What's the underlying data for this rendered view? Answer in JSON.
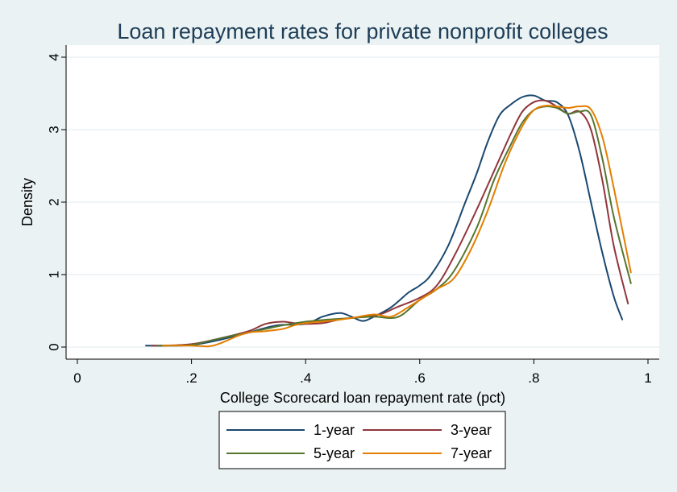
{
  "chart_data": {
    "type": "line",
    "title": "Loan repayment rates for private nonprofit colleges",
    "xlabel": "College Scorecard loan repayment rate (pct)",
    "ylabel": "Density",
    "xlim": [
      0,
      1
    ],
    "ylim": [
      0,
      4
    ],
    "x_ticks": [
      0,
      0.2,
      0.4,
      0.6,
      0.8,
      1
    ],
    "x_tick_labels": [
      "0",
      ".2",
      ".4",
      ".6",
      ".8",
      "1"
    ],
    "y_ticks": [
      0,
      1,
      2,
      3,
      4
    ],
    "y_tick_labels": [
      "0",
      "1",
      "2",
      "3",
      "4"
    ],
    "grid": "horizontal",
    "legend_position": "bottom",
    "colors": {
      "background": "#eaf2f3",
      "plot_background": "#ffffff",
      "grid": "#eaf2f3",
      "title": "#1e3d57"
    },
    "series": [
      {
        "name": "1-year",
        "color": "#1a476f",
        "points": [
          [
            0.12,
            0.02
          ],
          [
            0.15,
            0.02
          ],
          [
            0.2,
            0.03
          ],
          [
            0.25,
            0.1
          ],
          [
            0.3,
            0.2
          ],
          [
            0.35,
            0.3
          ],
          [
            0.4,
            0.32
          ],
          [
            0.43,
            0.42
          ],
          [
            0.46,
            0.47
          ],
          [
            0.48,
            0.42
          ],
          [
            0.5,
            0.36
          ],
          [
            0.52,
            0.42
          ],
          [
            0.55,
            0.55
          ],
          [
            0.58,
            0.75
          ],
          [
            0.6,
            0.85
          ],
          [
            0.62,
            1.0
          ],
          [
            0.65,
            1.4
          ],
          [
            0.68,
            2.0
          ],
          [
            0.7,
            2.4
          ],
          [
            0.72,
            2.85
          ],
          [
            0.74,
            3.2
          ],
          [
            0.76,
            3.35
          ],
          [
            0.78,
            3.45
          ],
          [
            0.8,
            3.47
          ],
          [
            0.82,
            3.4
          ],
          [
            0.84,
            3.38
          ],
          [
            0.86,
            3.2
          ],
          [
            0.88,
            2.7
          ],
          [
            0.9,
            2.0
          ],
          [
            0.92,
            1.3
          ],
          [
            0.94,
            0.7
          ],
          [
            0.955,
            0.38
          ]
        ]
      },
      {
        "name": "3-year",
        "color": "#90353b",
        "points": [
          [
            0.13,
            0.02
          ],
          [
            0.15,
            0.02
          ],
          [
            0.2,
            0.04
          ],
          [
            0.25,
            0.12
          ],
          [
            0.3,
            0.22
          ],
          [
            0.33,
            0.32
          ],
          [
            0.36,
            0.35
          ],
          [
            0.38,
            0.33
          ],
          [
            0.4,
            0.32
          ],
          [
            0.43,
            0.33
          ],
          [
            0.46,
            0.38
          ],
          [
            0.5,
            0.42
          ],
          [
            0.53,
            0.45
          ],
          [
            0.56,
            0.55
          ],
          [
            0.6,
            0.68
          ],
          [
            0.63,
            0.85
          ],
          [
            0.66,
            1.25
          ],
          [
            0.7,
            1.9
          ],
          [
            0.74,
            2.6
          ],
          [
            0.76,
            2.95
          ],
          [
            0.78,
            3.25
          ],
          [
            0.8,
            3.38
          ],
          [
            0.82,
            3.4
          ],
          [
            0.84,
            3.32
          ],
          [
            0.86,
            3.22
          ],
          [
            0.88,
            3.25
          ],
          [
            0.9,
            3.0
          ],
          [
            0.92,
            2.3
          ],
          [
            0.94,
            1.4
          ],
          [
            0.965,
            0.6
          ]
        ]
      },
      {
        "name": "5-year",
        "color": "#55752f",
        "points": [
          [
            0.14,
            0.02
          ],
          [
            0.17,
            0.02
          ],
          [
            0.2,
            0.03
          ],
          [
            0.25,
            0.12
          ],
          [
            0.3,
            0.2
          ],
          [
            0.33,
            0.25
          ],
          [
            0.36,
            0.3
          ],
          [
            0.4,
            0.35
          ],
          [
            0.44,
            0.38
          ],
          [
            0.48,
            0.4
          ],
          [
            0.52,
            0.42
          ],
          [
            0.55,
            0.4
          ],
          [
            0.57,
            0.45
          ],
          [
            0.6,
            0.65
          ],
          [
            0.63,
            0.8
          ],
          [
            0.66,
            1.05
          ],
          [
            0.7,
            1.65
          ],
          [
            0.73,
            2.3
          ],
          [
            0.76,
            2.8
          ],
          [
            0.78,
            3.1
          ],
          [
            0.8,
            3.27
          ],
          [
            0.82,
            3.32
          ],
          [
            0.84,
            3.3
          ],
          [
            0.86,
            3.22
          ],
          [
            0.88,
            3.25
          ],
          [
            0.9,
            3.2
          ],
          [
            0.92,
            2.6
          ],
          [
            0.94,
            1.8
          ],
          [
            0.97,
            0.88
          ]
        ]
      },
      {
        "name": "7-year",
        "color": "#e37e00",
        "points": [
          [
            0.15,
            0.02
          ],
          [
            0.2,
            0.02
          ],
          [
            0.23,
            0.01
          ],
          [
            0.25,
            0.05
          ],
          [
            0.28,
            0.15
          ],
          [
            0.3,
            0.2
          ],
          [
            0.33,
            0.22
          ],
          [
            0.36,
            0.25
          ],
          [
            0.38,
            0.3
          ],
          [
            0.4,
            0.33
          ],
          [
            0.44,
            0.36
          ],
          [
            0.48,
            0.4
          ],
          [
            0.52,
            0.45
          ],
          [
            0.55,
            0.42
          ],
          [
            0.58,
            0.55
          ],
          [
            0.6,
            0.65
          ],
          [
            0.63,
            0.8
          ],
          [
            0.66,
            0.95
          ],
          [
            0.69,
            1.35
          ],
          [
            0.72,
            1.9
          ],
          [
            0.75,
            2.55
          ],
          [
            0.78,
            3.05
          ],
          [
            0.8,
            3.27
          ],
          [
            0.82,
            3.33
          ],
          [
            0.84,
            3.32
          ],
          [
            0.86,
            3.3
          ],
          [
            0.88,
            3.32
          ],
          [
            0.9,
            3.28
          ],
          [
            0.92,
            2.9
          ],
          [
            0.94,
            2.2
          ],
          [
            0.97,
            1.03
          ]
        ]
      }
    ]
  }
}
